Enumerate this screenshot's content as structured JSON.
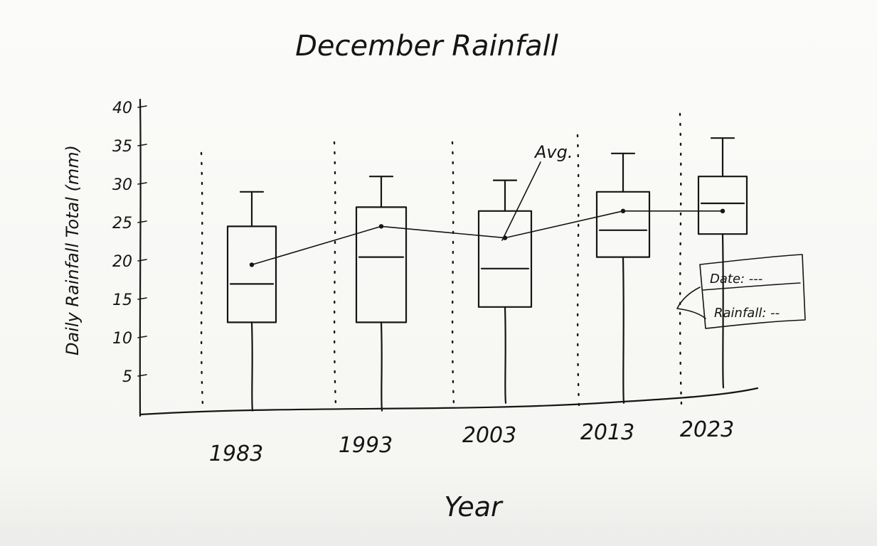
{
  "chart_data": {
    "type": "box",
    "title": "December Rainfall",
    "xlabel": "Year",
    "ylabel": "Daily Rainfall Total (mm)",
    "categories": [
      "1983",
      "1993",
      "2003",
      "2013",
      "2023"
    ],
    "y_ticks": [
      "5",
      "10",
      "15",
      "20",
      "25",
      "30",
      "35",
      "40"
    ],
    "ylim": [
      0,
      40
    ],
    "grid": false,
    "boxes": [
      {
        "label": "1983",
        "min": 0.5,
        "q1": 12,
        "median": 17,
        "q3": 24.5,
        "max": 29,
        "avg": 19.5
      },
      {
        "label": "1993",
        "min": 0.5,
        "q1": 12,
        "median": 20.5,
        "q3": 27,
        "max": 31,
        "avg": 24.5
      },
      {
        "label": "2003",
        "min": 1.5,
        "q1": 14,
        "median": 19,
        "q3": 26.5,
        "max": 30.5,
        "avg": 23
      },
      {
        "label": "2013",
        "min": 1.5,
        "q1": 20.5,
        "median": 24,
        "q3": 29,
        "max": 34,
        "avg": 26.5
      },
      {
        "label": "2023",
        "min": 3.5,
        "q1": 23.5,
        "median": 27.5,
        "q3": 31,
        "max": 36,
        "avg": 26.5
      }
    ],
    "avg_line": true,
    "annotations": {
      "avg_label": "Avg.",
      "tooltip": {
        "line1": "Date: ---",
        "line2": "Rainfall: --"
      }
    }
  }
}
